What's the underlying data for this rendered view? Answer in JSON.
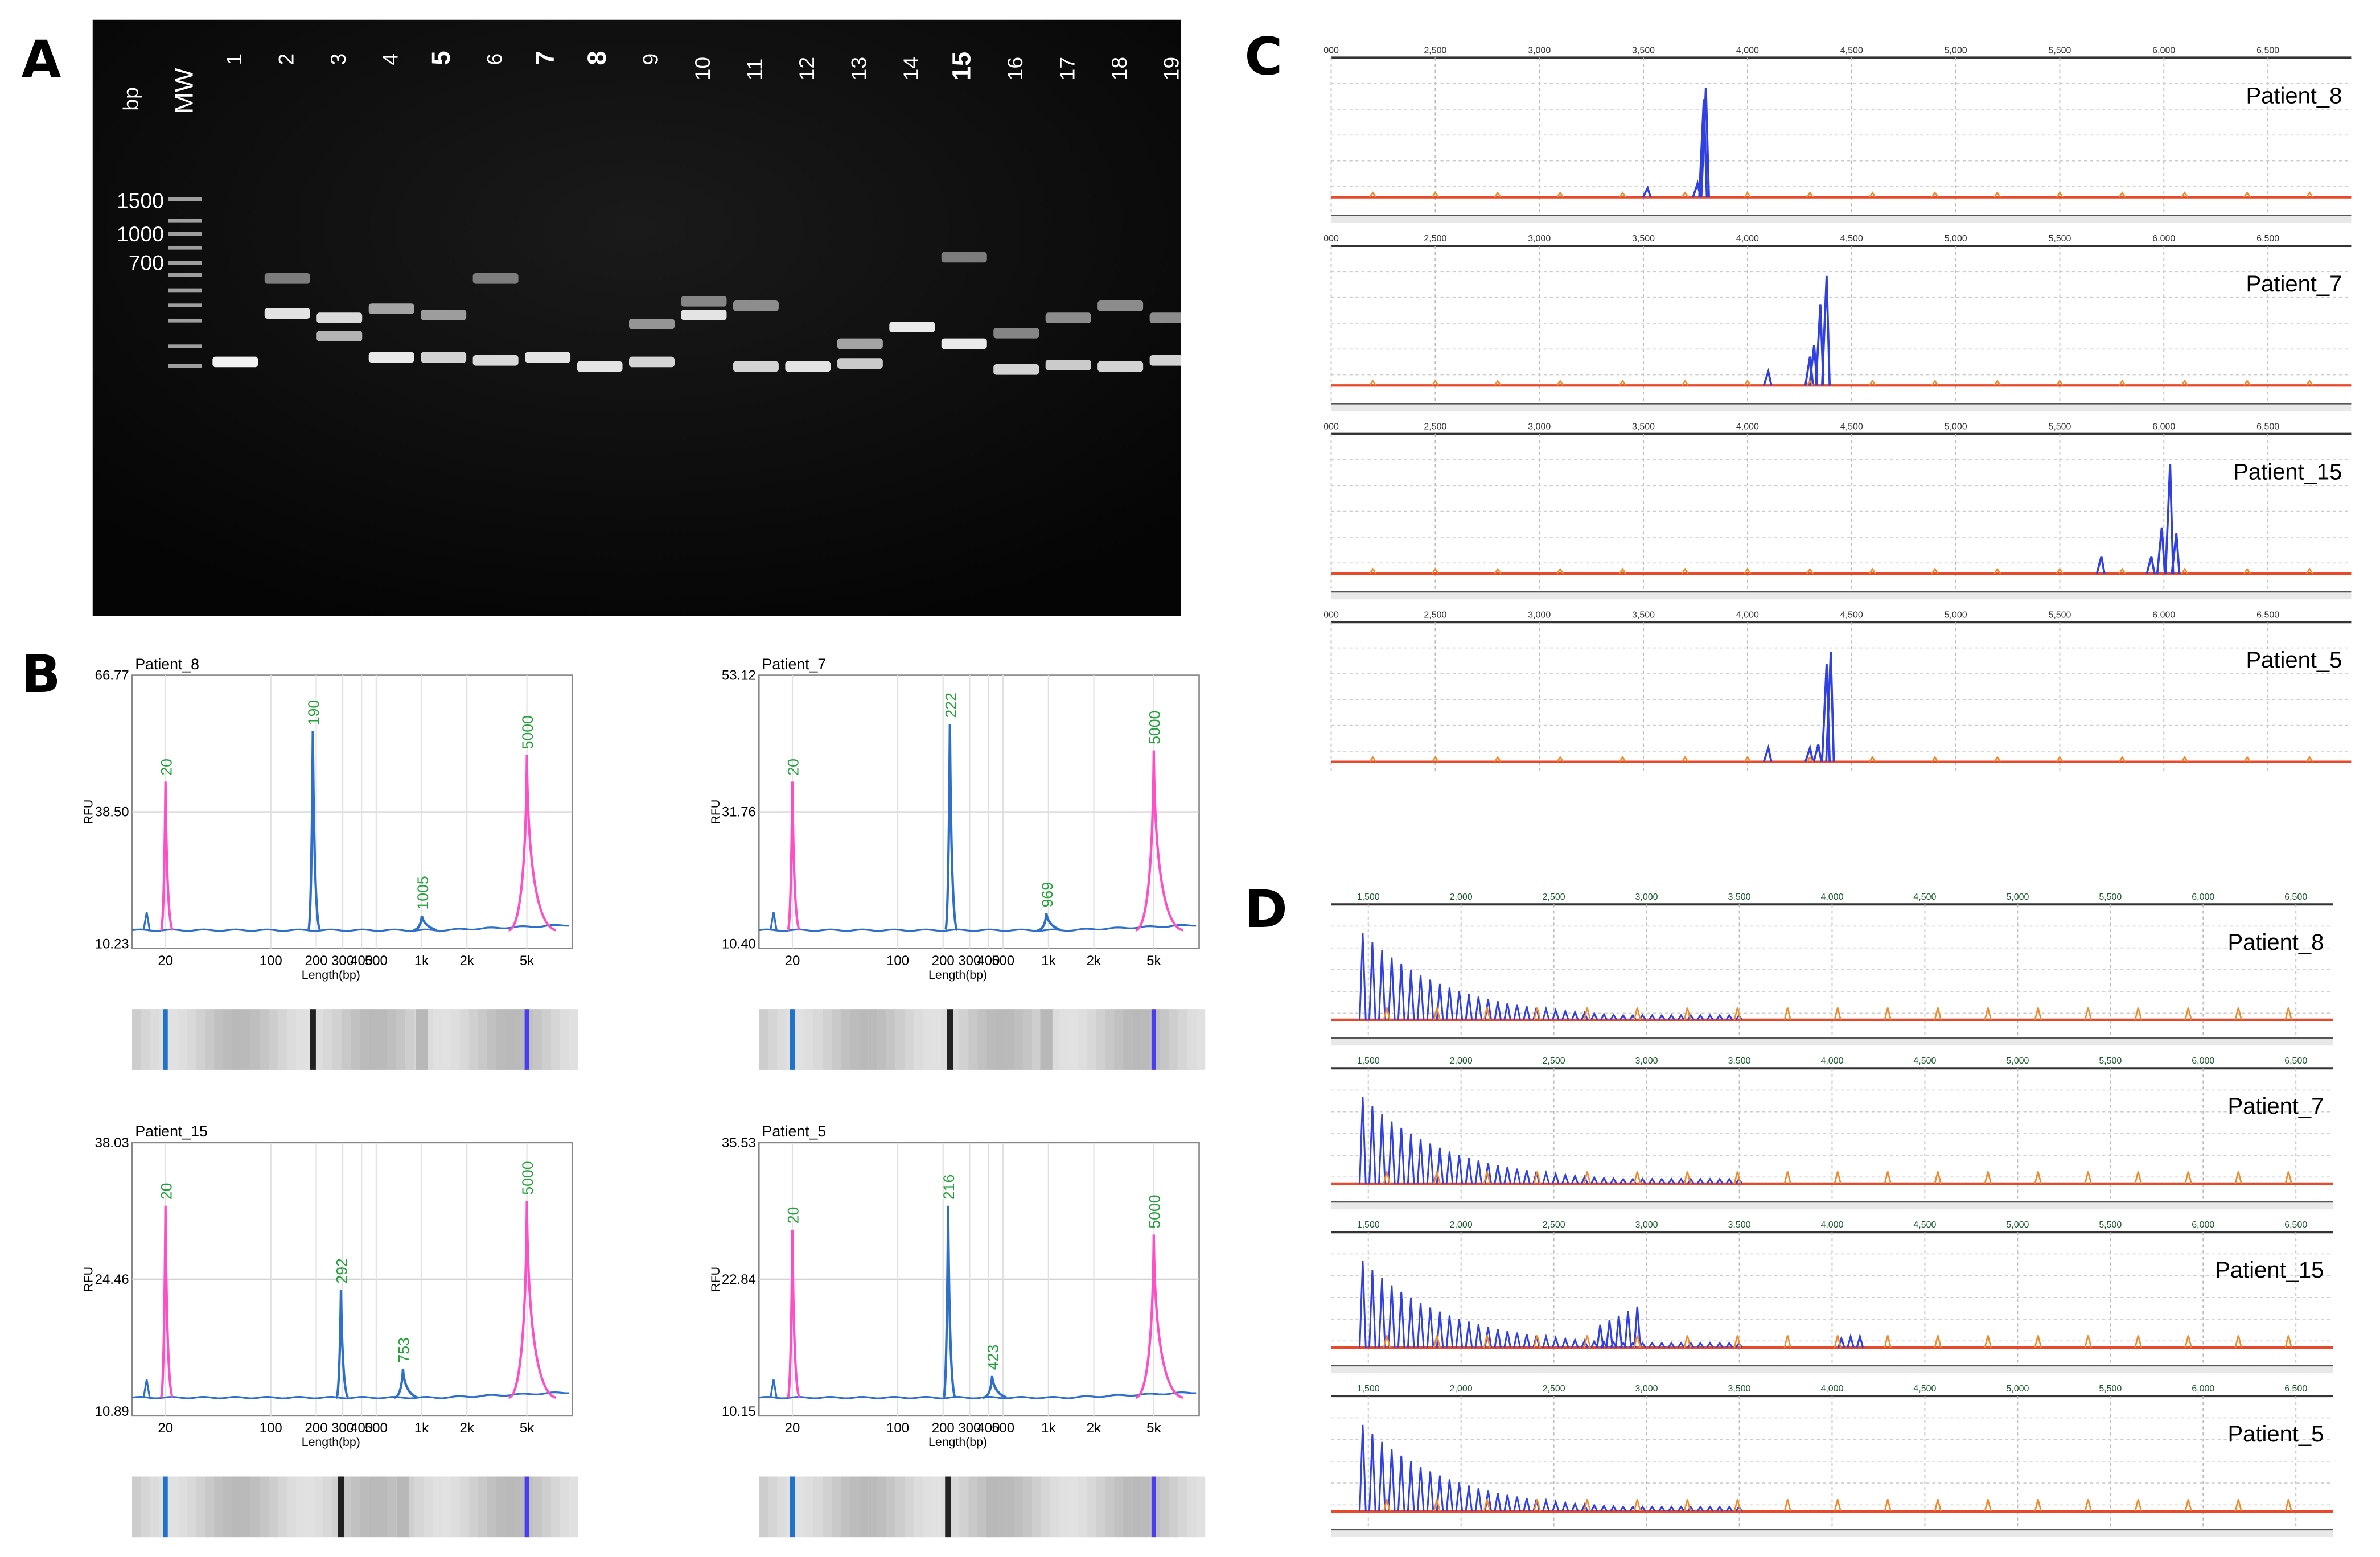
{
  "panel_labels": [
    "A",
    "B",
    "C",
    "D"
  ],
  "gel": {
    "bp_label": "bp",
    "mw_label": "MW",
    "lanes": [
      "1",
      "2",
      "3",
      "4",
      "5",
      "6",
      "7",
      "8",
      "9",
      "10",
      "11",
      "12",
      "13",
      "14",
      "15",
      "16",
      "17",
      "18",
      "19"
    ],
    "bold_lanes": [
      "5",
      "7",
      "8",
      "15"
    ],
    "ladder_labels": [
      "1500",
      "1000",
      "700"
    ]
  },
  "electropherograms": [
    {
      "title": "Patient_8",
      "ymax": "66.77",
      "ymid": "38.50",
      "ymin": "10.23",
      "ylabel": "RFU",
      "xlabel": "Length(bp)",
      "xticks": [
        "20",
        "100",
        "200",
        "300",
        "400",
        "500",
        "1k",
        "2k",
        "5k"
      ],
      "peaks": [
        {
          "label": "20",
          "bp": 20,
          "height": 0.62,
          "color": "#ff4fc8"
        },
        {
          "label": "190",
          "bp": 190,
          "height": 0.83,
          "color": "#2e6fcc"
        },
        {
          "label": "1005",
          "bp": 1005,
          "height": 0.06,
          "color": "#2e6fcc"
        },
        {
          "label": "5000",
          "bp": 5000,
          "height": 0.73,
          "color": "#ff4fc8"
        }
      ]
    },
    {
      "title": "Patient_7",
      "ymax": "53.12",
      "ymid": "31.76",
      "ymin": "10.40",
      "ylabel": "RFU",
      "xlabel": "Length(bp)",
      "xticks": [
        "20",
        "100",
        "200",
        "300",
        "400",
        "500",
        "1k",
        "2k",
        "5k"
      ],
      "peaks": [
        {
          "label": "20",
          "bp": 20,
          "height": 0.62,
          "color": "#ff4fc8"
        },
        {
          "label": "222",
          "bp": 222,
          "height": 0.86,
          "color": "#2e6fcc"
        },
        {
          "label": "969",
          "bp": 969,
          "height": 0.07,
          "color": "#2e6fcc"
        },
        {
          "label": "5000",
          "bp": 5000,
          "height": 0.75,
          "color": "#ff4fc8"
        }
      ]
    },
    {
      "title": "Patient_15",
      "ymax": "38.03",
      "ymid": "24.46",
      "ymin": "10.89",
      "ylabel": "RFU",
      "xlabel": "Length(bp)",
      "xticks": [
        "20",
        "100",
        "200",
        "300",
        "400",
        "500",
        "1k",
        "2k",
        "5k"
      ],
      "peaks": [
        {
          "label": "20",
          "bp": 20,
          "height": 0.8,
          "color": "#ff4fc8"
        },
        {
          "label": "292",
          "bp": 292,
          "height": 0.45,
          "color": "#2e6fcc"
        },
        {
          "label": "753",
          "bp": 753,
          "height": 0.12,
          "color": "#2e6fcc"
        },
        {
          "label": "5000",
          "bp": 5000,
          "height": 0.82,
          "color": "#ff4fc8"
        }
      ]
    },
    {
      "title": "Patient_5",
      "ymax": "35.53",
      "ymid": "22.84",
      "ymin": "10.15",
      "ylabel": "RFU",
      "xlabel": "Length(bp)",
      "xticks": [
        "20",
        "100",
        "200",
        "300",
        "400",
        "500",
        "1k",
        "2k",
        "5k"
      ],
      "peaks": [
        {
          "label": "20",
          "bp": 20,
          "height": 0.7,
          "color": "#ff4fc8"
        },
        {
          "label": "216",
          "bp": 216,
          "height": 0.8,
          "color": "#2e6fcc"
        },
        {
          "label": "423",
          "bp": 423,
          "height": 0.09,
          "color": "#2e6fcc"
        },
        {
          "label": "5000",
          "bp": 5000,
          "height": 0.68,
          "color": "#ff4fc8"
        }
      ]
    }
  ],
  "capillary_C": {
    "xticks": [
      "000",
      "2,500",
      "3,000",
      "3,500",
      "4,000",
      "4,500",
      "5,000",
      "5,500",
      "6,000",
      "6,500"
    ],
    "xrange": [
      2000,
      6900
    ],
    "tracks": [
      {
        "name": "Patient_8",
        "peaks": [
          {
            "x": 3800,
            "h": 0.95
          },
          {
            "x": 3790,
            "h": 0.85
          },
          {
            "x": 3760,
            "h": 0.12
          },
          {
            "x": 3520,
            "h": 0.08
          }
        ]
      },
      {
        "name": "Patient_7",
        "peaks": [
          {
            "x": 4380,
            "h": 0.95
          },
          {
            "x": 4350,
            "h": 0.7
          },
          {
            "x": 4320,
            "h": 0.35
          },
          {
            "x": 4300,
            "h": 0.25
          },
          {
            "x": 4100,
            "h": 0.12
          }
        ]
      },
      {
        "name": "Patient_15",
        "peaks": [
          {
            "x": 6030,
            "h": 0.95
          },
          {
            "x": 6060,
            "h": 0.35
          },
          {
            "x": 5990,
            "h": 0.4
          },
          {
            "x": 5940,
            "h": 0.15
          },
          {
            "x": 5700,
            "h": 0.15
          }
        ]
      },
      {
        "name": "Patient_5",
        "peaks": [
          {
            "x": 4400,
            "h": 0.95
          },
          {
            "x": 4380,
            "h": 0.85
          },
          {
            "x": 4340,
            "h": 0.15
          },
          {
            "x": 4300,
            "h": 0.12
          },
          {
            "x": 4100,
            "h": 0.12
          }
        ]
      }
    ]
  },
  "capillary_D": {
    "xticks": [
      "1,500",
      "2,000",
      "2,500",
      "3,000",
      "3,500",
      "4,000",
      "4,500",
      "5,000",
      "5,500",
      "6,000",
      "6,500"
    ],
    "xrange": [
      1300,
      6700
    ],
    "tracks": [
      {
        "name": "Patient_8",
        "extra": []
      },
      {
        "name": "Patient_7",
        "extra": []
      },
      {
        "name": "Patient_15",
        "extra": [
          {
            "x": 2750,
            "h": 0.25
          },
          {
            "x": 2800,
            "h": 0.3
          },
          {
            "x": 2850,
            "h": 0.35
          },
          {
            "x": 2900,
            "h": 0.4
          },
          {
            "x": 2950,
            "h": 0.45
          },
          {
            "x": 4050,
            "h": 0.1
          },
          {
            "x": 4100,
            "h": 0.12
          },
          {
            "x": 4150,
            "h": 0.12
          }
        ]
      },
      {
        "name": "Patient_5",
        "extra": []
      }
    ]
  }
}
